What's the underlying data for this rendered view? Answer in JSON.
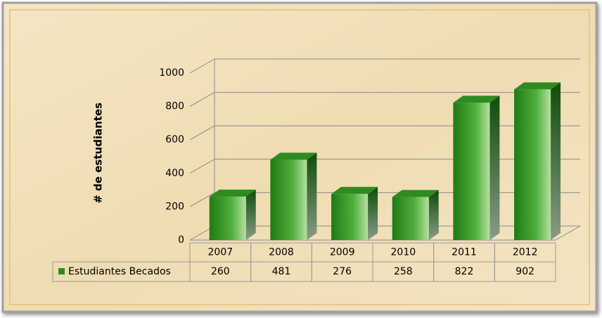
{
  "chart_data": {
    "type": "bar",
    "y_label": "# de estudiantes",
    "categories": [
      "2007",
      "2008",
      "2009",
      "2010",
      "2011",
      "2012"
    ],
    "series": [
      {
        "name": "Estudiantes Becados",
        "color": "#2e8b1e",
        "values": [
          260,
          481,
          276,
          258,
          822,
          902
        ]
      }
    ],
    "ylim": [
      0,
      1000
    ],
    "yticks": [
      0,
      200,
      400,
      600,
      800,
      1000
    ],
    "grid": true
  }
}
